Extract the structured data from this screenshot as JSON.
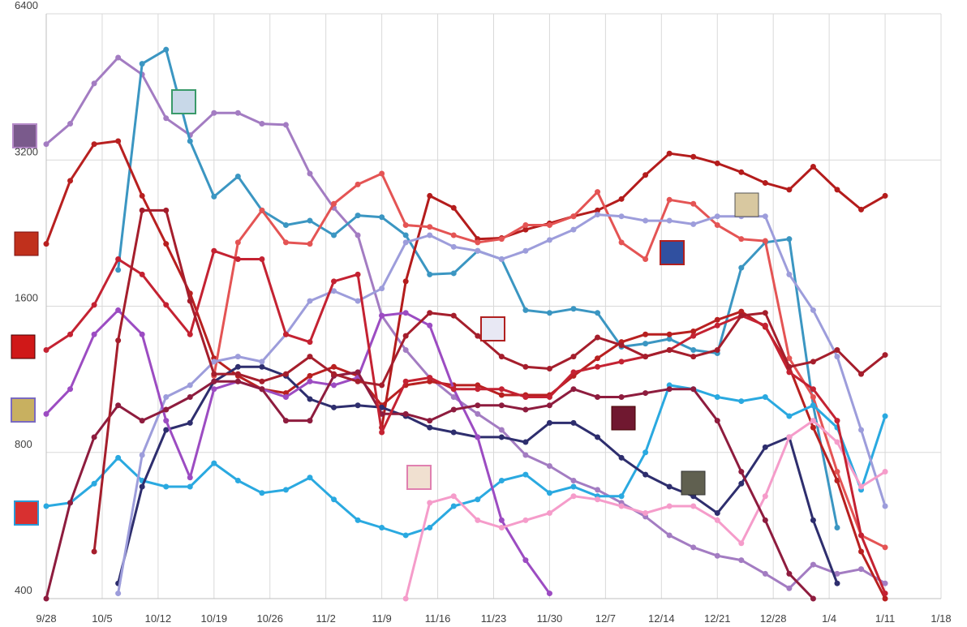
{
  "chart_data": {
    "type": "line",
    "log_scale": true,
    "grid": true,
    "xlim": [
      "9/28",
      "1/18"
    ],
    "xticks": [
      "9/28",
      "10/5",
      "10/12",
      "10/19",
      "10/26",
      "11/2",
      "11/9",
      "11/16",
      "11/23",
      "11/30",
      "12/7",
      "12/14",
      "12/21",
      "12/28",
      "1/4",
      "1/11",
      "1/18"
    ],
    "ylim": [
      400,
      6400
    ],
    "yticks": [
      400,
      800,
      1600,
      3200,
      6400
    ],
    "x": [
      "9/28",
      "10/1",
      "10/4",
      "10/7",
      "10/10",
      "10/13",
      "10/16",
      "10/19",
      "10/22",
      "10/25",
      "10/28",
      "10/31",
      "11/3",
      "11/6",
      "11/9",
      "11/12",
      "11/15",
      "11/18",
      "11/21",
      "11/24",
      "11/27",
      "11/30",
      "12/3",
      "12/6",
      "12/9",
      "12/12",
      "12/15",
      "12/18",
      "12/21",
      "12/24",
      "12/27",
      "12/30",
      "1/2",
      "1/5",
      "1/8",
      "1/11"
    ],
    "series": [
      {
        "color": "#a37cc2",
        "values": [
          3450,
          3800,
          4600,
          5200,
          4800,
          3900,
          3600,
          4000,
          4000,
          3800,
          3780,
          3000,
          2550,
          2240,
          1530,
          1300,
          1140,
          1040,
          960,
          890,
          790,
          750,
          700,
          670,
          630,
          590,
          540,
          510,
          490,
          480,
          450,
          420,
          470,
          450,
          460,
          430
        ]
      },
      {
        "color": "#3b96c2",
        "values": [
          null,
          null,
          null,
          1900,
          5050,
          5400,
          3500,
          2690,
          2960,
          2520,
          2350,
          2400,
          2240,
          2460,
          2440,
          2240,
          1860,
          1870,
          2080,
          2000,
          1570,
          1550,
          1580,
          1550,
          1320,
          1340,
          1370,
          1300,
          1280,
          1920,
          2165,
          2200,
          1000,
          560,
          null,
          null
        ]
      },
      {
        "color": "#b82020",
        "values": [
          2150,
          2900,
          3450,
          3500,
          2700,
          2150,
          1700,
          1250,
          1150,
          1080,
          1060,
          1150,
          1200,
          1150,
          1000,
          1100,
          1120,
          1100,
          1100,
          1050,
          1050,
          1050,
          1150,
          1250,
          1350,
          1400,
          1400,
          1420,
          1500,
          1560,
          1450,
          1200,
          900,
          700,
          500,
          400
        ]
      },
      {
        "color": "#b41c1c",
        "values": [
          null,
          null,
          null,
          null,
          null,
          null,
          null,
          null,
          null,
          null,
          null,
          null,
          null,
          null,
          900,
          1800,
          2700,
          2550,
          2200,
          2210,
          2300,
          2370,
          2450,
          2520,
          2660,
          2980,
          3300,
          3250,
          3150,
          3020,
          2870,
          2780,
          3100,
          2780,
          2530,
          2700
        ]
      },
      {
        "color": "#e45454",
        "values": [
          null,
          null,
          null,
          null,
          null,
          null,
          null,
          1150,
          2165,
          2520,
          2165,
          2150,
          2600,
          2850,
          3000,
          2350,
          2330,
          2240,
          2165,
          2200,
          2350,
          2350,
          2450,
          2750,
          2165,
          2000,
          2650,
          2600,
          2350,
          2200,
          2180,
          1250,
          1040,
          730,
          540,
          510
        ]
      },
      {
        "color": "#2aa9e0",
        "values": [
          620,
          630,
          690,
          780,
          700,
          680,
          680,
          760,
          700,
          660,
          670,
          710,
          640,
          580,
          560,
          540,
          560,
          620,
          640,
          700,
          720,
          660,
          680,
          650,
          650,
          800,
          1100,
          1080,
          1040,
          1020,
          1040,
          950,
          1000,
          900,
          670,
          950
        ]
      },
      {
        "color": "#2e2e6e",
        "values": [
          null,
          null,
          null,
          430,
          680,
          890,
          920,
          1120,
          1200,
          1200,
          1150,
          1030,
          990,
          1000,
          990,
          950,
          900,
          880,
          860,
          860,
          840,
          920,
          920,
          860,
          780,
          720,
          680,
          650,
          600,
          690,
          820,
          860,
          580,
          430,
          null,
          null
        ]
      },
      {
        "color": "#9d9ddb",
        "values": [
          null,
          null,
          null,
          410,
          790,
          1040,
          1100,
          1230,
          1260,
          1230,
          1400,
          1640,
          1720,
          1640,
          1740,
          2165,
          2240,
          2120,
          2080,
          2000,
          2080,
          2190,
          2300,
          2470,
          2450,
          2400,
          2400,
          2360,
          2450,
          2450,
          2450,
          1860,
          1570,
          1260,
          890,
          620
        ]
      },
      {
        "color": "#9c4cc2",
        "values": [
          960,
          1080,
          1400,
          1570,
          1400,
          930,
          710,
          1080,
          1120,
          1080,
          1040,
          1120,
          1100,
          1140,
          1530,
          1550,
          1460,
          1080,
          860,
          580,
          480,
          410,
          null,
          null,
          null,
          null,
          null,
          null,
          null,
          null,
          null,
          null,
          null,
          null,
          null,
          null
        ]
      },
      {
        "color": "#f59cca",
        "values": [
          null,
          null,
          null,
          null,
          null,
          null,
          null,
          null,
          null,
          null,
          null,
          null,
          null,
          null,
          null,
          400,
          630,
          650,
          580,
          560,
          580,
          600,
          650,
          640,
          620,
          600,
          620,
          620,
          580,
          520,
          650,
          860,
          930,
          840,
          680,
          730
        ]
      },
      {
        "color": "#8e1c3e",
        "values": [
          400,
          630,
          860,
          1000,
          930,
          980,
          1040,
          1120,
          1120,
          1080,
          930,
          930,
          1150,
          1170,
          960,
          960,
          930,
          980,
          1000,
          1000,
          980,
          1000,
          1080,
          1040,
          1040,
          1060,
          1080,
          1080,
          930,
          730,
          580,
          450,
          400,
          null,
          null,
          null
        ]
      },
      {
        "color": "#c42232",
        "values": [
          1300,
          1400,
          1610,
          2000,
          1860,
          1610,
          1400,
          2080,
          2000,
          2000,
          1400,
          1350,
          1800,
          1860,
          880,
          1120,
          1140,
          1080,
          1080,
          1080,
          1040,
          1040,
          1170,
          1200,
          1230,
          1260,
          1300,
          1390,
          1460,
          1530,
          1460,
          1170,
          1080,
          930,
          540,
          410
        ]
      },
      {
        "color": "#a51e2c",
        "values": [
          null,
          null,
          500,
          1360,
          2520,
          2520,
          1640,
          1160,
          1160,
          1120,
          1160,
          1260,
          1160,
          1120,
          1100,
          1390,
          1550,
          1530,
          1390,
          1260,
          1200,
          1190,
          1260,
          1380,
          1330,
          1260,
          1300,
          1260,
          1300,
          1530,
          1550,
          1200,
          1230,
          1300,
          1160,
          1270
        ]
      }
    ]
  }
}
